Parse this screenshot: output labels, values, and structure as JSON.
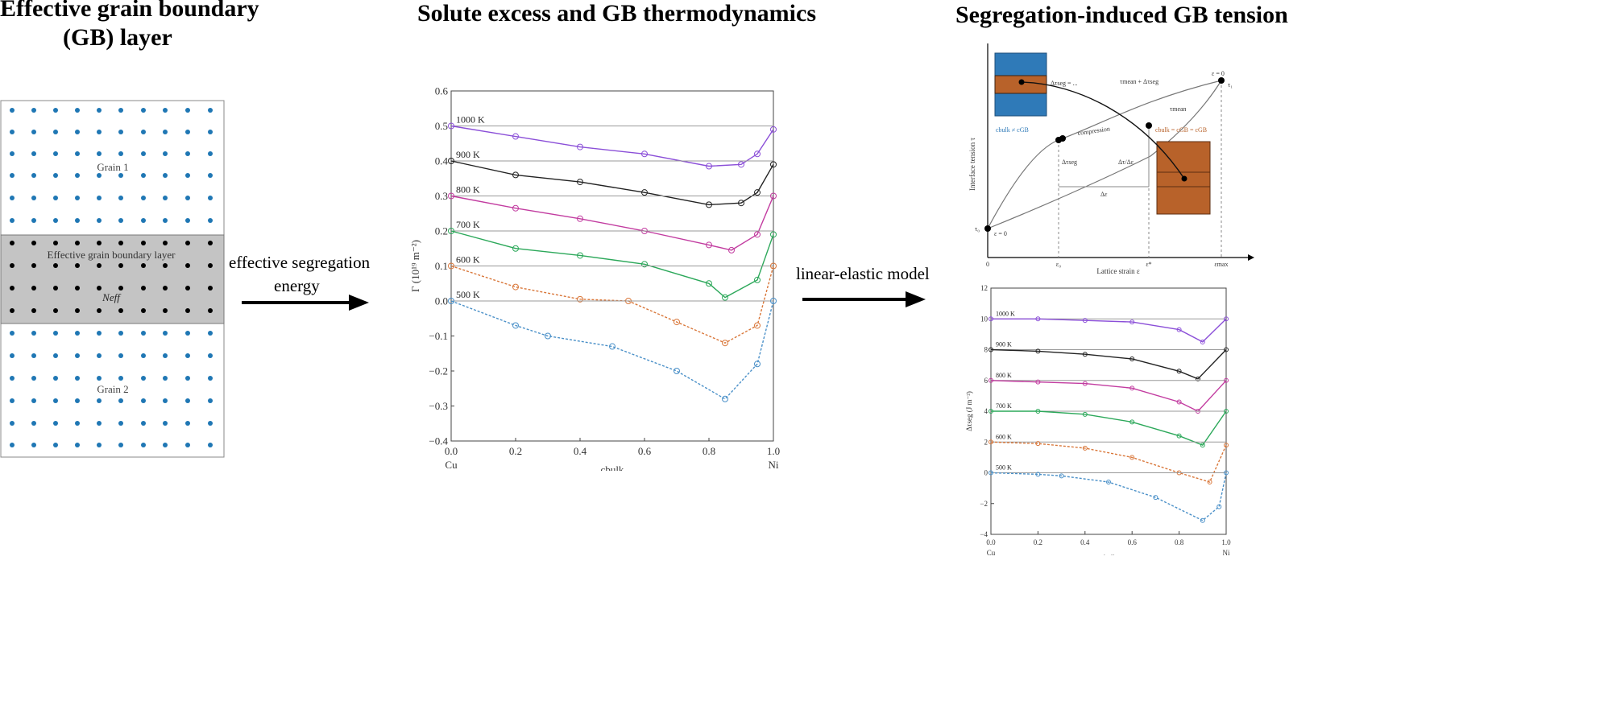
{
  "titles": {
    "left": [
      "Effective grain boundary",
      "(GB) layer"
    ],
    "middle": "Solute excess and GB thermodynamics",
    "right": "Segregation-induced GB tension"
  },
  "lattice": {
    "grain1": "Grain 1",
    "gb_layer": "Effective grain boundary layer",
    "n_eff": "Neff",
    "grain2": "Grain 2",
    "colors": {
      "grain": "#1f77b4",
      "gb": "#000000",
      "gb_band": "#c4c4c4"
    }
  },
  "arrows": {
    "first": [
      "effective segregation",
      "energy"
    ],
    "second": "linear-elastic model"
  },
  "chart_data": [
    {
      "type": "line",
      "ylabel": "Γ (10¹⁹ m⁻²)",
      "xlabel": "cbulk",
      "x_end_labels": [
        "Cu",
        "Ni"
      ],
      "xlim": [
        0,
        1
      ],
      "ylim": [
        -0.4,
        0.6
      ],
      "xticks": [
        0,
        0.2,
        0.4,
        0.6,
        0.8,
        1.0
      ],
      "xtick_labels": [
        "0.0",
        "0.2",
        "0.4",
        "0.6",
        "0.8",
        "1.0"
      ],
      "yticks": [
        -0.4,
        -0.3,
        -0.2,
        -0.1,
        0.0,
        0.1,
        0.2,
        0.3,
        0.4,
        0.5,
        0.6
      ],
      "ytick_labels": [
        "−0.4",
        "−0.3",
        "−0.2",
        "−0.1",
        "0.0",
        "0.1",
        "0.2",
        "0.3",
        "0.4",
        "0.5",
        "0.6"
      ],
      "series": [
        {
          "name": "1000 K",
          "color": "#8b4fd8",
          "offset": 0.5,
          "x": [
            0,
            0.2,
            0.4,
            0.6,
            0.8,
            0.9,
            0.95,
            1.0
          ],
          "y": [
            0.5,
            0.47,
            0.44,
            0.42,
            0.385,
            0.39,
            0.42,
            0.49
          ]
        },
        {
          "name": "900 K",
          "color": "#222222",
          "offset": 0.4,
          "x": [
            0,
            0.2,
            0.4,
            0.6,
            0.8,
            0.9,
            0.95,
            1.0
          ],
          "y": [
            0.4,
            0.36,
            0.34,
            0.31,
            0.275,
            0.28,
            0.31,
            0.39
          ]
        },
        {
          "name": "800 K",
          "color": "#c23ca0",
          "offset": 0.3,
          "x": [
            0,
            0.2,
            0.4,
            0.6,
            0.8,
            0.87,
            0.95,
            1.0
          ],
          "y": [
            0.3,
            0.265,
            0.235,
            0.2,
            0.16,
            0.145,
            0.19,
            0.3
          ]
        },
        {
          "name": "700 K",
          "color": "#2ca85a",
          "offset": 0.2,
          "x": [
            0,
            0.2,
            0.4,
            0.6,
            0.8,
            0.85,
            0.95,
            1.0
          ],
          "y": [
            0.2,
            0.15,
            0.13,
            0.105,
            0.05,
            0.01,
            0.06,
            0.19
          ]
        },
        {
          "name": "600 K",
          "color": "#d9773a",
          "offset": 0.1,
          "x": [
            0,
            0.2,
            0.4,
            0.55,
            0.7,
            0.85,
            0.95,
            1.0
          ],
          "y": [
            0.1,
            0.04,
            0.005,
            0.0,
            -0.06,
            -0.12,
            -0.07,
            0.1
          ]
        },
        {
          "name": "500 K",
          "color": "#4a90c8",
          "offset": 0.0,
          "x": [
            0,
            0.2,
            0.3,
            0.5,
            0.7,
            0.85,
            0.95,
            1.0
          ],
          "y": [
            0.0,
            -0.07,
            -0.1,
            -0.13,
            -0.2,
            -0.28,
            -0.18,
            0.0
          ]
        }
      ]
    },
    {
      "type": "line",
      "ylabel": "Δτseg (J m⁻²)",
      "xlabel": "cbulk",
      "x_end_labels": [
        "Cu",
        "Ni"
      ],
      "xlim": [
        0,
        1
      ],
      "ylim": [
        -4,
        12
      ],
      "xticks": [
        0,
        0.2,
        0.4,
        0.6,
        0.8,
        1.0
      ],
      "xtick_labels": [
        "0.0",
        "0.2",
        "0.4",
        "0.6",
        "0.8",
        "1.0"
      ],
      "yticks": [
        -4,
        -2,
        0,
        2,
        4,
        6,
        8,
        10,
        12
      ],
      "ytick_labels": [
        "−4",
        "−2",
        "0",
        "2",
        "4",
        "6",
        "8",
        "10",
        "12"
      ],
      "series": [
        {
          "name": "1000 K",
          "color": "#8b4fd8",
          "offset": 10,
          "x": [
            0,
            0.2,
            0.4,
            0.6,
            0.8,
            0.9,
            1.0
          ],
          "y": [
            10,
            10,
            9.9,
            9.8,
            9.3,
            8.5,
            10
          ]
        },
        {
          "name": "900 K",
          "color": "#222222",
          "offset": 8,
          "x": [
            0,
            0.2,
            0.4,
            0.6,
            0.8,
            0.88,
            1.0
          ],
          "y": [
            8,
            7.9,
            7.7,
            7.4,
            6.6,
            6.1,
            8
          ]
        },
        {
          "name": "800 K",
          "color": "#c23ca0",
          "offset": 6,
          "x": [
            0,
            0.2,
            0.4,
            0.6,
            0.8,
            0.88,
            1.0
          ],
          "y": [
            6,
            5.9,
            5.8,
            5.5,
            4.6,
            4,
            6
          ]
        },
        {
          "name": "700 K",
          "color": "#2ca85a",
          "offset": 4,
          "x": [
            0,
            0.2,
            0.4,
            0.6,
            0.8,
            0.9,
            1.0
          ],
          "y": [
            4,
            4,
            3.8,
            3.3,
            2.4,
            1.8,
            4
          ]
        },
        {
          "name": "600 K",
          "color": "#d9773a",
          "offset": 2,
          "x": [
            0,
            0.2,
            0.4,
            0.6,
            0.8,
            0.93,
            1.0
          ],
          "y": [
            2,
            1.9,
            1.6,
            1.0,
            0,
            -0.6,
            1.8
          ]
        },
        {
          "name": "500 K",
          "color": "#4a90c8",
          "offset": 0,
          "x": [
            0,
            0.2,
            0.3,
            0.5,
            0.7,
            0.9,
            0.97,
            1.0
          ],
          "y": [
            0,
            -0.1,
            -0.2,
            -0.6,
            -1.6,
            -3.1,
            -2.2,
            0
          ]
        }
      ]
    },
    {
      "type": "line",
      "ylabel": "Interface tension τ",
      "xlabel": "Lattice strain ε",
      "xtick_labels": [
        "0",
        "ε₀",
        "ε*",
        "εmax"
      ],
      "labels": {
        "tau0": "τ₀",
        "eps0": "ε = 0",
        "tau_top": "τ₁",
        "eps_top": "ε = 0",
        "d_tau_seg_formula": "Δτseg = ...",
        "tau_mean_plus": "τmean + Δτseg",
        "tau_mean": "τmean",
        "c_neq": "cbulk ≠ cGB",
        "c_eq": "cbulk = cGB = cGB",
        "compression": "compression",
        "d_tau_seg": "Δτseg",
        "d_eps": "Δε",
        "d_tau_eps": "Δτ/Δε"
      },
      "colors": {
        "blue_block": "#2f7ab8",
        "orange_block": "#b8622a"
      }
    }
  ]
}
